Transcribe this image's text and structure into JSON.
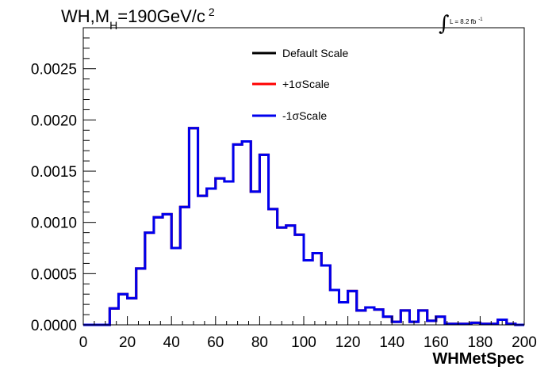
{
  "chart_data": {
    "type": "line",
    "title": {
      "prefix": "WH,M",
      "subscript": "H",
      "suffix": "=190GeV/c",
      "superscript": "2"
    },
    "lumi": {
      "text": "L = 8.2 fb",
      "sup": "-1"
    },
    "xlabel": "WHMetSpec",
    "ylabel": "",
    "xlim": [
      0,
      200
    ],
    "ylim": [
      0,
      0.0029
    ],
    "x_ticks": [
      "0",
      "20",
      "40",
      "60",
      "80",
      "100",
      "120",
      "140",
      "160",
      "180",
      "200"
    ],
    "y_ticks": [
      "0.0000",
      "0.0005",
      "0.0010",
      "0.0015",
      "0.0020",
      "0.0025"
    ],
    "grid": false,
    "legend_position": "top-center",
    "bin_width": 4,
    "bin_low_edges": [
      0,
      4,
      8,
      12,
      16,
      20,
      24,
      28,
      32,
      36,
      40,
      44,
      48,
      52,
      56,
      60,
      64,
      68,
      72,
      76,
      80,
      84,
      88,
      92,
      96,
      100,
      104,
      108,
      112,
      116,
      120,
      124,
      128,
      132,
      136,
      140,
      144,
      148,
      152,
      156,
      160,
      164,
      168,
      172,
      176,
      180,
      184,
      188,
      192,
      196
    ],
    "series": [
      {
        "name": "Default Scale",
        "color": "#000000",
        "values": [
          0,
          0,
          0,
          0.00016,
          0.0003,
          0.00026,
          0.00055,
          0.0009,
          0.00105,
          0.00108,
          0.00075,
          0.00115,
          0.00192,
          0.00126,
          0.00133,
          0.00143,
          0.0014,
          0.00176,
          0.00179,
          0.0013,
          0.00166,
          0.00113,
          0.00095,
          0.00097,
          0.00088,
          0.00063,
          0.0007,
          0.00058,
          0.00034,
          0.00022,
          0.00033,
          0.00014,
          0.00017,
          0.00015,
          8e-05,
          3e-05,
          0.00014,
          3e-05,
          0.00014,
          4e-05,
          8e-05,
          1e-05,
          1e-05,
          1e-05,
          2e-05,
          1e-05,
          1e-05,
          5e-05,
          1e-05,
          0
        ]
      },
      {
        "name": "+1σScale",
        "color": "#ff0000",
        "values": [
          0,
          0,
          0,
          0.00016,
          0.0003,
          0.00026,
          0.00055,
          0.0009,
          0.00105,
          0.00108,
          0.00075,
          0.00115,
          0.00192,
          0.00126,
          0.00133,
          0.00143,
          0.0014,
          0.00176,
          0.00179,
          0.0013,
          0.00166,
          0.00113,
          0.00095,
          0.00097,
          0.00088,
          0.00063,
          0.0007,
          0.00058,
          0.00034,
          0.00022,
          0.00033,
          0.00014,
          0.00017,
          0.00015,
          8e-05,
          3e-05,
          0.00014,
          3e-05,
          0.00014,
          4e-05,
          8e-05,
          1e-05,
          1e-05,
          1e-05,
          2e-05,
          1e-05,
          1e-05,
          5e-05,
          1e-05,
          0
        ]
      },
      {
        "name": "-1σScale",
        "color": "#0000ee",
        "values": [
          0,
          0,
          0,
          0.00016,
          0.0003,
          0.00026,
          0.00055,
          0.0009,
          0.00105,
          0.00108,
          0.00075,
          0.00115,
          0.00192,
          0.00126,
          0.00133,
          0.00143,
          0.0014,
          0.00176,
          0.00179,
          0.0013,
          0.00166,
          0.00113,
          0.00095,
          0.00097,
          0.00088,
          0.00063,
          0.0007,
          0.00058,
          0.00034,
          0.00022,
          0.00033,
          0.00014,
          0.00017,
          0.00015,
          8e-05,
          3e-05,
          0.00014,
          3e-05,
          0.00014,
          4e-05,
          8e-05,
          1e-05,
          1e-05,
          1e-05,
          2e-05,
          1e-05,
          1e-05,
          5e-05,
          1e-05,
          0
        ]
      }
    ]
  }
}
